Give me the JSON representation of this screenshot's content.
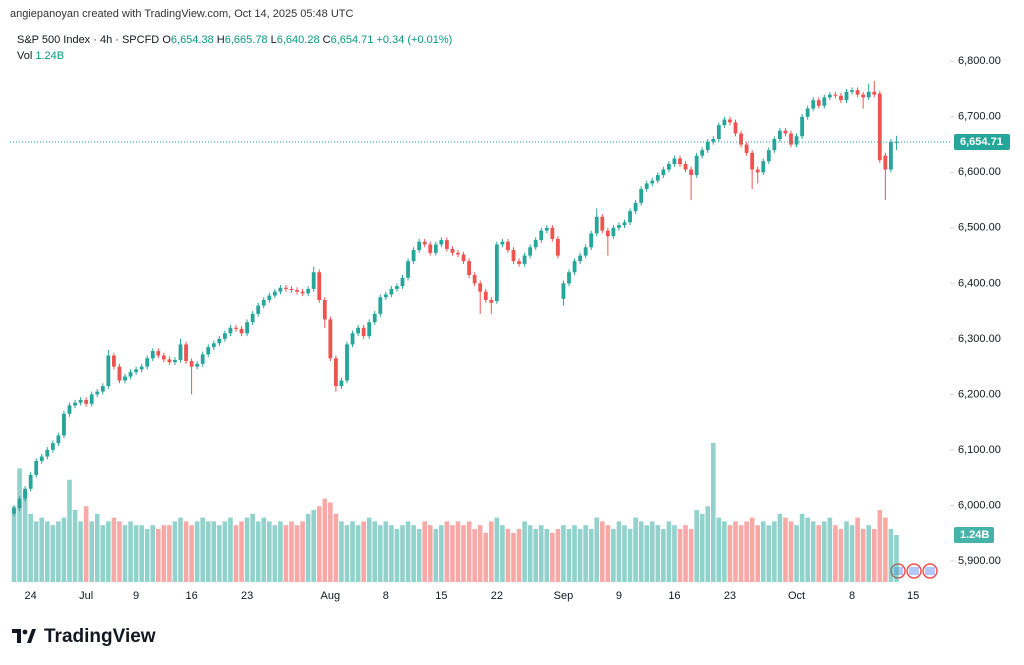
{
  "header": {
    "text": "angiepanoyan created with TradingView.com, Oct 14, 2025 05:48 UTC"
  },
  "footer": {
    "logo": "TradingView"
  },
  "chart_data": {
    "type": "candlestick",
    "title": "S&P 500 Index · 4h · SPCFD",
    "legend": [
      {
        "label": "O",
        "value": "6,654.38"
      },
      {
        "label": "H",
        "value": "6,665.78"
      },
      {
        "label": "L",
        "value": "6,640.28"
      },
      {
        "label": "C",
        "value": "6,654.71"
      }
    ],
    "change": "+0.34 (+0.01%)",
    "up_color": "#26a69a",
    "down_color": "#ef5350",
    "ylim": [
      5862,
      6860
    ],
    "yticks": [
      {
        "value": 5900,
        "label": "5,900.00"
      },
      {
        "value": 6000,
        "label": "6,000.00"
      },
      {
        "value": 6100,
        "label": "6,100.00"
      },
      {
        "value": 6200,
        "label": "6,200.00"
      },
      {
        "value": 6300,
        "label": "6,300.00"
      },
      {
        "value": 6400,
        "label": "6,400.00"
      },
      {
        "value": 6500,
        "label": "6,500.00"
      },
      {
        "value": 6600,
        "label": "6,600.00"
      },
      {
        "value": 6700,
        "label": "6,700.00"
      },
      {
        "value": 6800,
        "label": "6,800.00"
      }
    ],
    "grid": false,
    "last_price": {
      "value": 6654.71,
      "label": "6,654.71"
    },
    "categories": [
      null,
      null,
      null,
      "24",
      null,
      null,
      null,
      null,
      null,
      null,
      null,
      null,
      null,
      "Jul",
      null,
      null,
      null,
      null,
      null,
      null,
      null,
      null,
      "9",
      null,
      null,
      null,
      null,
      null,
      null,
      null,
      null,
      null,
      "16",
      null,
      null,
      null,
      null,
      null,
      null,
      null,
      null,
      null,
      "23",
      null,
      null,
      null,
      null,
      null,
      null,
      null,
      null,
      null,
      null,
      null,
      null,
      null,
      null,
      "Aug",
      null,
      null,
      null,
      null,
      null,
      null,
      null,
      null,
      null,
      "8",
      null,
      null,
      null,
      null,
      null,
      null,
      null,
      null,
      null,
      "15",
      null,
      null,
      null,
      null,
      null,
      null,
      null,
      null,
      null,
      "22",
      null,
      null,
      null,
      null,
      null,
      null,
      null,
      null,
      null,
      null,
      null,
      "Sep",
      null,
      null,
      null,
      null,
      null,
      null,
      null,
      null,
      null,
      "9",
      null,
      null,
      null,
      null,
      null,
      null,
      null,
      null,
      null,
      "16",
      null,
      null,
      null,
      null,
      null,
      null,
      null,
      null,
      null,
      "23",
      null,
      null,
      null,
      null,
      null,
      null,
      null,
      null,
      null,
      null,
      null,
      "Oct",
      null,
      null,
      null,
      null,
      null,
      null,
      null,
      null,
      null,
      "8",
      null,
      null,
      null,
      null,
      null,
      null,
      null,
      null,
      null,
      null,
      "15",
      null,
      null,
      null,
      null,
      null
    ],
    "open": [
      5985,
      5995,
      6012,
      6030,
      6055,
      6080,
      6088,
      6100,
      6112,
      6126,
      6165,
      6180,
      6185,
      6190,
      6183,
      6200,
      6205,
      6215,
      6270,
      6250,
      6225,
      6232,
      6240,
      6245,
      6250,
      6265,
      6278,
      6270,
      6263,
      6258,
      6262,
      6290,
      6260,
      6250,
      6255,
      6272,
      6285,
      6292,
      6300,
      6310,
      6320,
      6318,
      6310,
      6330,
      6345,
      6360,
      6370,
      6378,
      6385,
      6392,
      6390,
      6388,
      6385,
      6382,
      6390,
      6420,
      6370,
      6335,
      6265,
      6215,
      6225,
      6290,
      6310,
      6320,
      6305,
      6330,
      6345,
      6375,
      6380,
      6390,
      6395,
      6410,
      6440,
      6460,
      6475,
      6470,
      6455,
      6470,
      6478,
      6462,
      6455,
      6452,
      6440,
      6415,
      6400,
      6385,
      6370,
      6368,
      6470,
      6475,
      6460,
      6440,
      6435,
      6450,
      6465,
      6478,
      6495,
      6500,
      6480,
      6372,
      6400,
      6420,
      6440,
      6450,
      6465,
      6490,
      6520,
      6495,
      6485,
      6500,
      6505,
      6510,
      6530,
      6545,
      6570,
      6580,
      6585,
      6595,
      6605,
      6615,
      6625,
      6615,
      6605,
      6595,
      6630,
      6640,
      6655,
      6660,
      6685,
      6695,
      6690,
      6670,
      6650,
      6635,
      6605,
      6600,
      6620,
      6640,
      6660,
      6675,
      6670,
      6650,
      6665,
      6700,
      6715,
      6730,
      6720,
      6735,
      6740,
      6738,
      6730,
      6745,
      6748,
      6740,
      6735,
      6745,
      6742,
      6630,
      6605,
      6654.38,
      null,
      null,
      null,
      null,
      null,
      null,
      null,
      null
    ],
    "high": [
      6000,
      6017,
      6035,
      6060,
      6085,
      6093,
      6105,
      6117,
      6131,
      6170,
      6185,
      6190,
      6195,
      6195,
      6205,
      6210,
      6220,
      6280,
      6275,
      6255,
      6237,
      6245,
      6250,
      6255,
      6270,
      6283,
      6283,
      6275,
      6268,
      6267,
      6300,
      6295,
      6265,
      6260,
      6277,
      6290,
      6297,
      6305,
      6315,
      6325,
      6325,
      6323,
      6335,
      6350,
      6365,
      6375,
      6383,
      6390,
      6397,
      6397,
      6395,
      6393,
      6390,
      6395,
      6430,
      6425,
      6375,
      6340,
      6270,
      6230,
      6295,
      6315,
      6325,
      6325,
      6335,
      6350,
      6380,
      6385,
      6395,
      6400,
      6415,
      6445,
      6465,
      6480,
      6480,
      6475,
      6475,
      6483,
      6483,
      6467,
      6460,
      6457,
      6445,
      6420,
      6405,
      6390,
      6375,
      6475,
      6480,
      6480,
      6465,
      6445,
      6455,
      6470,
      6483,
      6500,
      6505,
      6505,
      6485,
      6405,
      6425,
      6445,
      6455,
      6470,
      6495,
      6535,
      6525,
      6500,
      6505,
      6510,
      6515,
      6535,
      6550,
      6575,
      6585,
      6590,
      6600,
      6610,
      6620,
      6630,
      6630,
      6620,
      6610,
      6635,
      6645,
      6660,
      6665,
      6690,
      6700,
      6700,
      6695,
      6675,
      6655,
      6640,
      6610,
      6625,
      6645,
      6665,
      6680,
      6680,
      6675,
      6670,
      6705,
      6720,
      6735,
      6735,
      6740,
      6745,
      6745,
      6743,
      6750,
      6753,
      6753,
      6745,
      6760,
      6765,
      6747,
      6635,
      6660,
      6665.78,
      null,
      null,
      null,
      null,
      null,
      null,
      null,
      null
    ],
    "low": [
      5980,
      5990,
      6007,
      6025,
      6050,
      6075,
      6083,
      6095,
      6107,
      6121,
      6160,
      6175,
      6180,
      6178,
      6178,
      6195,
      6200,
      6210,
      6245,
      6220,
      6220,
      6227,
      6235,
      6240,
      6245,
      6260,
      6265,
      6258,
      6253,
      6253,
      6257,
      6255,
      6200,
      6245,
      6250,
      6267,
      6280,
      6287,
      6295,
      6305,
      6313,
      6305,
      6305,
      6325,
      6340,
      6355,
      6365,
      6373,
      6380,
      6385,
      6383,
      6380,
      6377,
      6377,
      6385,
      6365,
      6320,
      6260,
      6205,
      6210,
      6220,
      6285,
      6305,
      6300,
      6300,
      6325,
      6340,
      6370,
      6375,
      6385,
      6390,
      6405,
      6435,
      6455,
      6465,
      6450,
      6450,
      6465,
      6457,
      6450,
      6447,
      6435,
      6410,
      6395,
      6345,
      6365,
      6345,
      6363,
      6465,
      6455,
      6435,
      6430,
      6430,
      6445,
      6460,
      6473,
      6490,
      6475,
      6445,
      6360,
      6395,
      6415,
      6435,
      6445,
      6460,
      6485,
      6490,
      6450,
      6480,
      6495,
      6500,
      6505,
      6525,
      6540,
      6565,
      6575,
      6580,
      6590,
      6600,
      6610,
      6610,
      6600,
      6550,
      6590,
      6625,
      6635,
      6650,
      6655,
      6680,
      6685,
      6665,
      6645,
      6630,
      6570,
      6580,
      6595,
      6615,
      6635,
      6655,
      6665,
      6645,
      6645,
      6660,
      6695,
      6710,
      6715,
      6715,
      6730,
      6733,
      6725,
      6725,
      6740,
      6735,
      6715,
      6730,
      6735,
      6617,
      6550,
      6600,
      6640.28,
      null,
      null,
      null,
      null,
      null,
      null,
      null,
      null
    ],
    "close": [
      5995,
      6012,
      6030,
      6055,
      6080,
      6088,
      6100,
      6112,
      6126,
      6165,
      6180,
      6185,
      6190,
      6183,
      6200,
      6205,
      6215,
      6270,
      6250,
      6225,
      6232,
      6240,
      6245,
      6250,
      6265,
      6278,
      6270,
      6263,
      6258,
      6262,
      6290,
      6260,
      6250,
      6255,
      6272,
      6285,
      6292,
      6300,
      6310,
      6320,
      6318,
      6310,
      6330,
      6345,
      6360,
      6370,
      6378,
      6385,
      6392,
      6390,
      6388,
      6385,
      6382,
      6390,
      6420,
      6370,
      6335,
      6265,
      6215,
      6225,
      6290,
      6310,
      6320,
      6305,
      6330,
      6345,
      6375,
      6380,
      6390,
      6395,
      6410,
      6440,
      6460,
      6475,
      6470,
      6455,
      6470,
      6478,
      6462,
      6455,
      6452,
      6440,
      6415,
      6400,
      6385,
      6370,
      6365,
      6470,
      6475,
      6460,
      6440,
      6435,
      6450,
      6465,
      6478,
      6495,
      6500,
      6480,
      6450,
      6400,
      6420,
      6440,
      6450,
      6465,
      6490,
      6520,
      6495,
      6485,
      6500,
      6505,
      6510,
      6530,
      6545,
      6570,
      6580,
      6585,
      6595,
      6605,
      6615,
      6625,
      6615,
      6605,
      6595,
      6630,
      6640,
      6655,
      6660,
      6685,
      6695,
      6690,
      6670,
      6650,
      6635,
      6605,
      6600,
      6620,
      6640,
      6660,
      6675,
      6670,
      6650,
      6665,
      6700,
      6715,
      6730,
      6720,
      6735,
      6740,
      6738,
      6730,
      6745,
      6748,
      6740,
      6735,
      6745,
      6740,
      6622,
      6605,
      6654.38,
      6654.71,
      null,
      null,
      null,
      null,
      null,
      null,
      null,
      null
    ],
    "volume": {
      "name": "Vol",
      "last_label": "1.24B",
      "values": [
        2.0,
        3.0,
        2.4,
        1.8,
        1.6,
        1.7,
        1.6,
        1.5,
        1.6,
        1.7,
        2.7,
        1.9,
        1.6,
        2.0,
        1.6,
        1.8,
        1.5,
        1.6,
        1.7,
        1.6,
        1.5,
        1.6,
        1.5,
        1.5,
        1.4,
        1.5,
        1.4,
        1.5,
        1.5,
        1.6,
        1.7,
        1.6,
        1.5,
        1.6,
        1.7,
        1.6,
        1.6,
        1.5,
        1.6,
        1.7,
        1.5,
        1.6,
        1.7,
        1.8,
        1.6,
        1.7,
        1.6,
        1.5,
        1.6,
        1.5,
        1.6,
        1.5,
        1.6,
        1.8,
        1.9,
        2.0,
        2.2,
        2.1,
        1.8,
        1.6,
        1.5,
        1.6,
        1.5,
        1.6,
        1.7,
        1.6,
        1.5,
        1.6,
        1.5,
        1.4,
        1.5,
        1.6,
        1.5,
        1.4,
        1.6,
        1.5,
        1.4,
        1.5,
        1.6,
        1.5,
        1.6,
        1.5,
        1.6,
        1.4,
        1.5,
        1.3,
        1.6,
        1.7,
        1.5,
        1.4,
        1.3,
        1.4,
        1.6,
        1.5,
        1.4,
        1.5,
        1.4,
        1.3,
        1.4,
        1.5,
        1.4,
        1.5,
        1.4,
        1.5,
        1.4,
        1.7,
        1.6,
        1.5,
        1.4,
        1.6,
        1.5,
        1.4,
        1.7,
        1.6,
        1.5,
        1.6,
        1.5,
        1.4,
        1.6,
        1.5,
        1.4,
        1.5,
        1.4,
        1.9,
        1.8,
        2.0,
        3.67,
        1.7,
        1.6,
        1.5,
        1.6,
        1.5,
        1.6,
        1.7,
        1.5,
        1.6,
        1.5,
        1.6,
        1.8,
        1.7,
        1.6,
        1.5,
        1.8,
        1.7,
        1.6,
        1.5,
        1.6,
        1.7,
        1.5,
        1.4,
        1.6,
        1.5,
        1.7,
        1.4,
        1.5,
        1.4,
        1.9,
        1.7,
        1.4,
        1.24,
        null,
        null,
        null,
        null,
        null,
        null,
        null,
        null
      ]
    }
  }
}
